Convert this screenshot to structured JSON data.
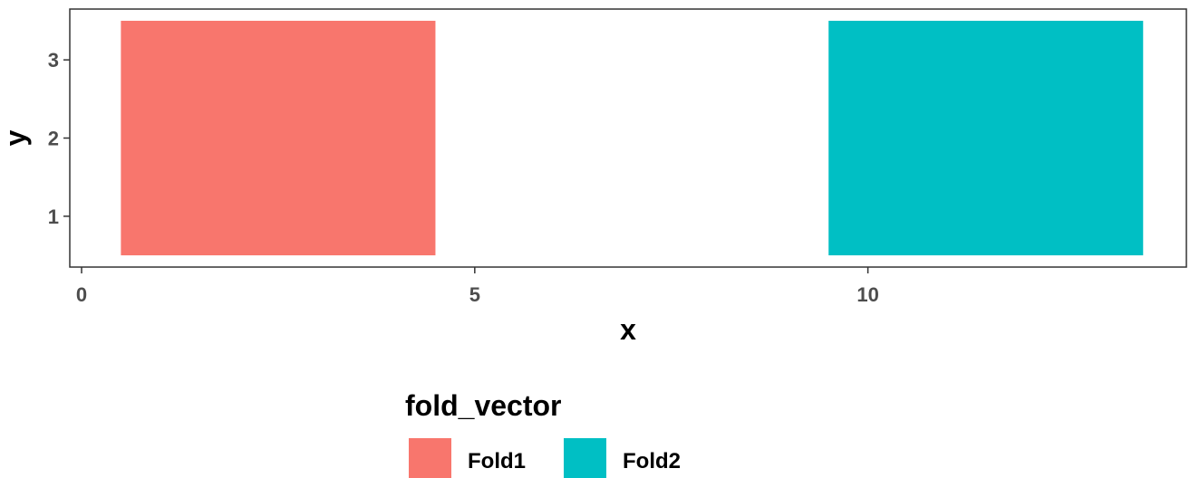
{
  "chart_data": {
    "type": "heatmap",
    "xlabel": "x",
    "ylabel": "y",
    "xlim": [
      -0.15,
      14.05
    ],
    "ylim": [
      0.35,
      3.65
    ],
    "x_ticks": [
      0,
      5,
      10
    ],
    "y_ticks": [
      1,
      2,
      3
    ],
    "grid": false,
    "legend": {
      "title": "fold_vector",
      "placement": "bottom",
      "entries": [
        {
          "name": "Fold1",
          "color": "#F8766D"
        },
        {
          "name": "Fold2",
          "color": "#00BFC4"
        }
      ]
    },
    "tiles": [
      {
        "group": "Fold1",
        "x": [
          0.5,
          4.5
        ],
        "y": [
          0.5,
          3.5
        ]
      },
      {
        "group": "Fold2",
        "x": [
          9.5,
          13.5
        ],
        "y": [
          0.5,
          3.5
        ]
      }
    ]
  }
}
